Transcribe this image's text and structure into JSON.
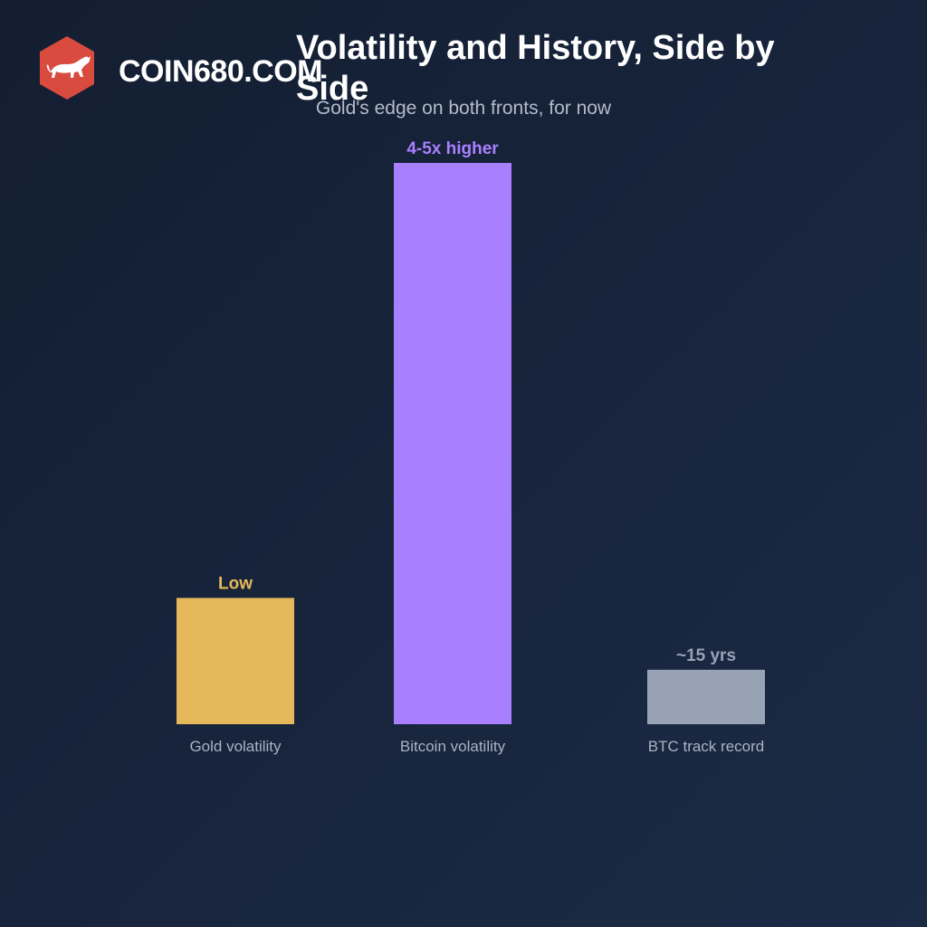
{
  "brand": {
    "name": "COIN680.COM",
    "logo_color": "#d94a3f"
  },
  "chart_data": {
    "type": "bar",
    "title": "Volatility and History, Side by Side",
    "subtitle": "Gold's edge on both fronts, for now",
    "xlabel": "",
    "ylabel": "",
    "grid": false,
    "legend": "none",
    "ylim": [
      0,
      100
    ],
    "categories": [
      "Gold volatility",
      "Bitcoin volatility",
      "BTC track record"
    ],
    "values": [
      22.5,
      100,
      9.7
    ],
    "data_labels": [
      "Low",
      "4-5x higher",
      "~15 yrs"
    ],
    "colors": [
      "#e6b85c",
      "#a880ff",
      "#97a3b4"
    ]
  }
}
